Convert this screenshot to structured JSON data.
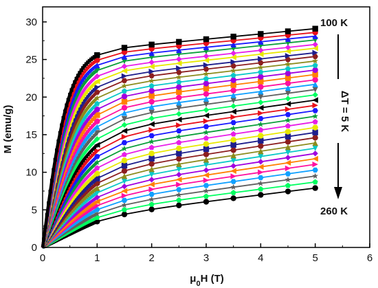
{
  "chart_data": {
    "type": "line",
    "title": "",
    "xlabel": "μ0H (T)",
    "xlabel_parts": {
      "base": "μ",
      "sub": "0",
      "rest": "H (T)"
    },
    "ylabel": "M (emu/g)",
    "xlim": [
      0,
      6
    ],
    "ylim": [
      0,
      32
    ],
    "x_ticks": [
      0,
      1,
      2,
      3,
      4,
      5,
      6
    ],
    "y_ticks": [
      0,
      5,
      10,
      15,
      20,
      25,
      30
    ],
    "grid": false,
    "legend": "none",
    "annotations": [
      "100 K",
      "ΔT = 5 K",
      "260 K"
    ],
    "markers_x": [
      1.0,
      1.5,
      2.0,
      2.5,
      3.0,
      3.5,
      4.0,
      4.5,
      5.0
    ],
    "series": [
      {
        "temperature": 100,
        "sat": 25.6,
        "slope": 0.7
      },
      {
        "temperature": 105,
        "sat": 25.0,
        "slope": 0.72
      },
      {
        "temperature": 110,
        "sat": 24.4,
        "slope": 0.74
      },
      {
        "temperature": 115,
        "sat": 23.8,
        "slope": 0.76
      },
      {
        "temperature": 120,
        "sat": 23.1,
        "slope": 0.78
      },
      {
        "temperature": 125,
        "sat": 22.5,
        "slope": 0.8
      },
      {
        "temperature": 130,
        "sat": 21.8,
        "slope": 0.82
      },
      {
        "temperature": 135,
        "sat": 21.2,
        "slope": 0.84
      },
      {
        "temperature": 140,
        "sat": 20.5,
        "slope": 0.86
      },
      {
        "temperature": 145,
        "sat": 19.8,
        "slope": 0.88
      },
      {
        "temperature": 150,
        "sat": 19.1,
        "slope": 0.9
      },
      {
        "temperature": 155,
        "sat": 18.4,
        "slope": 0.92
      },
      {
        "temperature": 160,
        "sat": 17.6,
        "slope": 0.94
      },
      {
        "temperature": 165,
        "sat": 16.9,
        "slope": 0.96
      },
      {
        "temperature": 170,
        "sat": 16.1,
        "slope": 0.98
      },
      {
        "temperature": 175,
        "sat": 15.3,
        "slope": 1.0
      },
      {
        "temperature": 180,
        "sat": 14.5,
        "slope": 1.02
      },
      {
        "temperature": 185,
        "sat": 13.7,
        "slope": 1.04
      },
      {
        "temperature": 190,
        "sat": 12.9,
        "slope": 1.06
      },
      {
        "temperature": 195,
        "sat": 12.1,
        "slope": 1.07
      },
      {
        "temperature": 200,
        "sat": 11.3,
        "slope": 1.08
      },
      {
        "temperature": 205,
        "sat": 10.5,
        "slope": 1.09
      },
      {
        "temperature": 210,
        "sat": 9.8,
        "slope": 1.1
      },
      {
        "temperature": 215,
        "sat": 9.1,
        "slope": 1.1
      },
      {
        "temperature": 220,
        "sat": 8.4,
        "slope": 1.1
      },
      {
        "temperature": 225,
        "sat": 7.7,
        "slope": 1.1
      },
      {
        "temperature": 230,
        "sat": 7.0,
        "slope": 1.1
      },
      {
        "temperature": 235,
        "sat": 6.4,
        "slope": 1.08
      },
      {
        "temperature": 240,
        "sat": 5.8,
        "slope": 1.05
      },
      {
        "temperature": 245,
        "sat": 5.2,
        "slope": 1.02
      },
      {
        "temperature": 250,
        "sat": 4.6,
        "slope": 0.98
      },
      {
        "temperature": 255,
        "sat": 4.0,
        "slope": 0.94
      },
      {
        "temperature": 260,
        "sat": 3.4,
        "slope": 0.9
      }
    ],
    "colors": [
      "#000000",
      "#e8101a",
      "#1a1aff",
      "#0a9e3a",
      "#e81ee8",
      "#e8e800",
      "#1e1e8c",
      "#8c1e1e",
      "#8c8c1e",
      "#0ac8c8",
      "#a000e0",
      "#ff8000",
      "#ff10a0",
      "#10a0ff",
      "#606060",
      "#00ff60"
    ],
    "markers": [
      "square",
      "circle",
      "triangle-up",
      "triangle-down",
      "diamond",
      "triangle-left",
      "triangle-right",
      "hexagon",
      "star",
      "pentagon",
      "circle"
    ]
  }
}
